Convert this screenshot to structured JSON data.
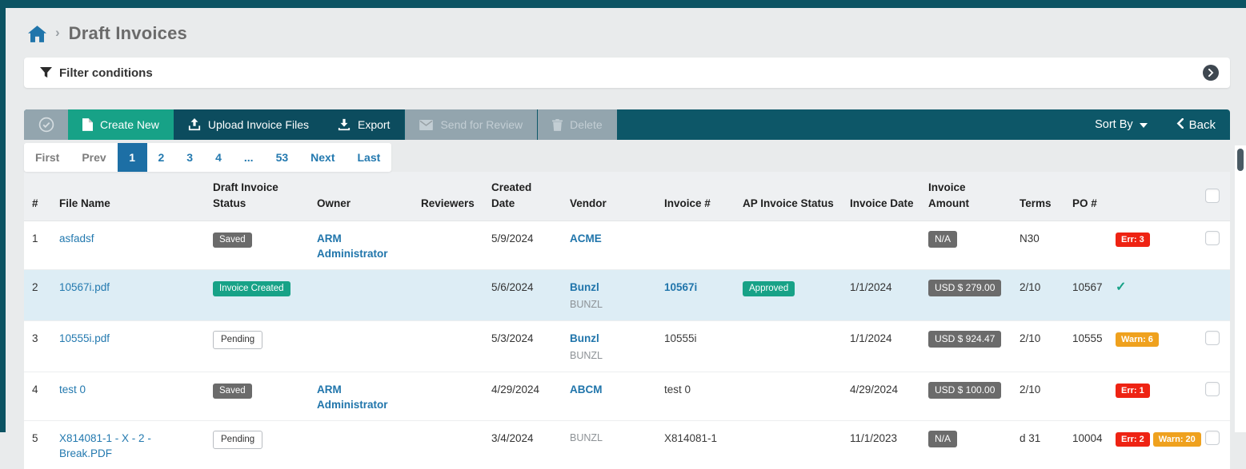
{
  "breadcrumb": {
    "separator": "›",
    "title": "Draft Invoices"
  },
  "filter_bar": {
    "label": "Filter conditions",
    "expand_icon": "chevron-right-circle-icon"
  },
  "toolbar": {
    "buttons": [
      {
        "name": "select-all-button",
        "label": "",
        "icon": "check-circle-icon",
        "style": "gray"
      },
      {
        "name": "create-new-button",
        "label": "Create New",
        "icon": "file-icon",
        "style": "green"
      },
      {
        "name": "upload-invoice-files-button",
        "label": "Upload Invoice Files",
        "icon": "upload-icon",
        "style": "teal"
      },
      {
        "name": "export-button",
        "label": "Export",
        "icon": "download-icon",
        "style": "teal"
      },
      {
        "name": "send-for-review-button",
        "label": "Send for Review",
        "icon": "envelope-icon",
        "style": "disabled"
      },
      {
        "name": "delete-button",
        "label": "Delete",
        "icon": "trash-icon",
        "style": "disabled"
      }
    ],
    "sort_by_label": "Sort By",
    "back_label": "Back"
  },
  "pagination": {
    "items": [
      {
        "label": "First",
        "state": "disabled"
      },
      {
        "label": "Prev",
        "state": "disabled"
      },
      {
        "label": "1",
        "state": "active"
      },
      {
        "label": "2",
        "state": "link"
      },
      {
        "label": "3",
        "state": "link"
      },
      {
        "label": "4",
        "state": "link"
      },
      {
        "label": "...",
        "state": "link"
      },
      {
        "label": "53",
        "state": "link"
      },
      {
        "label": "Next",
        "state": "link"
      },
      {
        "label": "Last",
        "state": "link"
      }
    ]
  },
  "table": {
    "columns": [
      "#",
      "File Name",
      "Draft Invoice Status",
      "Owner",
      "Reviewers",
      "Created Date",
      "Vendor",
      "Invoice #",
      "AP Invoice Status",
      "Invoice Date",
      "Invoice Amount",
      "Terms",
      "PO #"
    ],
    "rows": [
      {
        "num": "1",
        "file_name": "asfadsf",
        "status": {
          "label": "Saved",
          "style": "dark"
        },
        "owner": "ARM Administrator",
        "reviewers": "",
        "created_date": "5/9/2024",
        "vendor": {
          "name": "ACME",
          "code": ""
        },
        "invoice_no": {
          "text": "",
          "link": false
        },
        "ap_status": "",
        "invoice_date": "",
        "amount": "N/A",
        "terms": "N30",
        "po": "",
        "flags": [
          {
            "label": "Err: 3",
            "type": "error"
          }
        ],
        "check_mark": false,
        "selector": "checkbox",
        "highlighted": false
      },
      {
        "num": "2",
        "file_name": "10567i.pdf",
        "status": {
          "label": "Invoice Created",
          "style": "green"
        },
        "owner": "",
        "reviewers": "",
        "created_date": "5/6/2024",
        "vendor": {
          "name": "Bunzl",
          "code": "BUNZL"
        },
        "invoice_no": {
          "text": "10567i",
          "link": true
        },
        "ap_status": "Approved",
        "invoice_date": "1/1/2024",
        "amount": "USD $ 279.00",
        "terms": "2/10",
        "po": "10567",
        "flags": [],
        "check_mark": true,
        "selector": "none",
        "highlighted": true
      },
      {
        "num": "3",
        "file_name": "10555i.pdf",
        "status": {
          "label": "Pending",
          "style": "outline"
        },
        "owner": "",
        "reviewers": "",
        "created_date": "5/3/2024",
        "vendor": {
          "name": "Bunzl",
          "code": "BUNZL"
        },
        "invoice_no": {
          "text": "10555i",
          "link": false
        },
        "ap_status": "",
        "invoice_date": "1/1/2024",
        "amount": "USD $ 924.47",
        "terms": "2/10",
        "po": "10555",
        "flags": [
          {
            "label": "Warn: 6",
            "type": "warning"
          }
        ],
        "check_mark": false,
        "selector": "checkbox",
        "highlighted": false
      },
      {
        "num": "4",
        "file_name": "test 0",
        "status": {
          "label": "Saved",
          "style": "dark"
        },
        "owner": "ARM Administrator",
        "reviewers": "",
        "created_date": "4/29/2024",
        "vendor": {
          "name": "ABCM",
          "code": ""
        },
        "invoice_no": {
          "text": "test 0",
          "link": false
        },
        "ap_status": "",
        "invoice_date": "4/29/2024",
        "amount": "USD $ 100.00",
        "terms": "2/10",
        "po": "",
        "flags": [
          {
            "label": "Err: 1",
            "type": "error"
          }
        ],
        "check_mark": false,
        "selector": "checkbox",
        "highlighted": false
      },
      {
        "num": "5",
        "file_name": "X814081-1 - X - 2 - Break.PDF",
        "status": {
          "label": "Pending",
          "style": "outline"
        },
        "owner": "",
        "reviewers": "",
        "created_date": "3/4/2024",
        "vendor": {
          "name": "",
          "code": "BUNZL"
        },
        "invoice_no": {
          "text": "X814081-1",
          "link": false
        },
        "ap_status": "",
        "invoice_date": "11/1/2023",
        "amount": "N/A",
        "terms": "d 31",
        "po": "10004",
        "flags": [
          {
            "label": "Err: 2",
            "type": "error"
          },
          {
            "label": "Warn: 20",
            "type": "warning"
          }
        ],
        "check_mark": false,
        "selector": "checkbox",
        "highlighted": false
      }
    ]
  },
  "colors": {
    "teal_dark": "#0c5363",
    "toolbar_teal": "#0d5768",
    "button_teal": "#0c4c5e",
    "green": "#17a287",
    "blue_link": "#2379af",
    "blue_bold_link": "#2075ab",
    "active_page_blue": "#1d6fa5",
    "red_error": "#ee2313",
    "orange_warning": "#efa11e",
    "badge_gray": "#6b6b6b",
    "row_highlight": "#ddedf5",
    "page_background": "#e9ebec"
  }
}
